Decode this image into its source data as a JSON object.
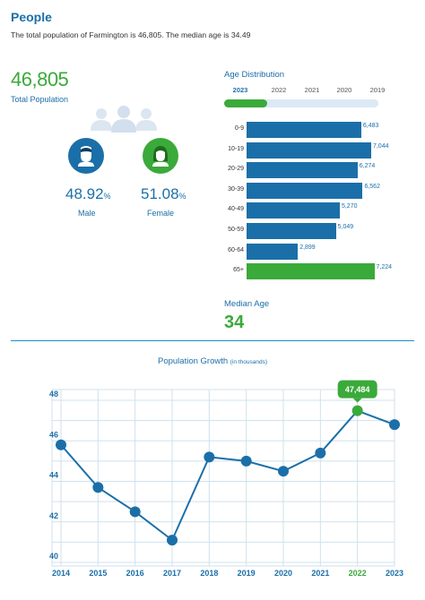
{
  "header": {
    "title": "People",
    "intro": "The total population of Farmington is 46,805. The median age is 34.49"
  },
  "population": {
    "total": "46,805",
    "total_label": "Total Population"
  },
  "gender": {
    "male": {
      "value": "48.92",
      "unit": "%",
      "label": "Male",
      "color": "#1b6fa8",
      "icon": "male-person-icon"
    },
    "female": {
      "value": "51.08",
      "unit": "%",
      "label": "Female",
      "color": "#3aaa3a",
      "icon": "female-person-icon"
    }
  },
  "age_distribution": {
    "title": "Age Distribution",
    "years": [
      "2023",
      "2022",
      "2021",
      "2020",
      "2019"
    ],
    "selected_year": "2023",
    "selected_year_progress": 0.28
  },
  "median": {
    "label": "Median Age",
    "value": "34"
  },
  "growth": {
    "title": "Population Growth",
    "subtitle": "(in thousands)",
    "highlight_label": "47,484"
  },
  "colors": {
    "primary": "#1b6fa8",
    "accent": "#3aaa3a",
    "grid": "#cfe1ee"
  },
  "chart_data": [
    {
      "type": "bar",
      "orientation": "horizontal",
      "title": "Age Distribution",
      "categories": [
        "0-9",
        "10-19",
        "20-29",
        "30-39",
        "40-49",
        "50-59",
        "60-64",
        "65+"
      ],
      "values": [
        6483,
        7044,
        6274,
        6562,
        5270,
        5049,
        2899,
        7224
      ],
      "value_labels": [
        "6,483",
        "7,044",
        "6,274",
        "6,562",
        "5,270",
        "5,049",
        "2,899",
        "7,224"
      ],
      "highlight_category": "65+"
    },
    {
      "type": "line",
      "title": "Population Growth",
      "subtitle": "(in thousands)",
      "x": [
        "2014",
        "2015",
        "2016",
        "2017",
        "2018",
        "2019",
        "2020",
        "2021",
        "2022",
        "2023"
      ],
      "values": [
        45.8,
        43.7,
        42.5,
        41.1,
        45.2,
        45.0,
        44.5,
        45.4,
        47.484,
        46.8
      ],
      "highlight_x": "2022",
      "highlight_label": "47,484",
      "ylim": [
        40,
        48
      ],
      "yticks": [
        40,
        42,
        44,
        46,
        48
      ],
      "grid": true
    }
  ]
}
